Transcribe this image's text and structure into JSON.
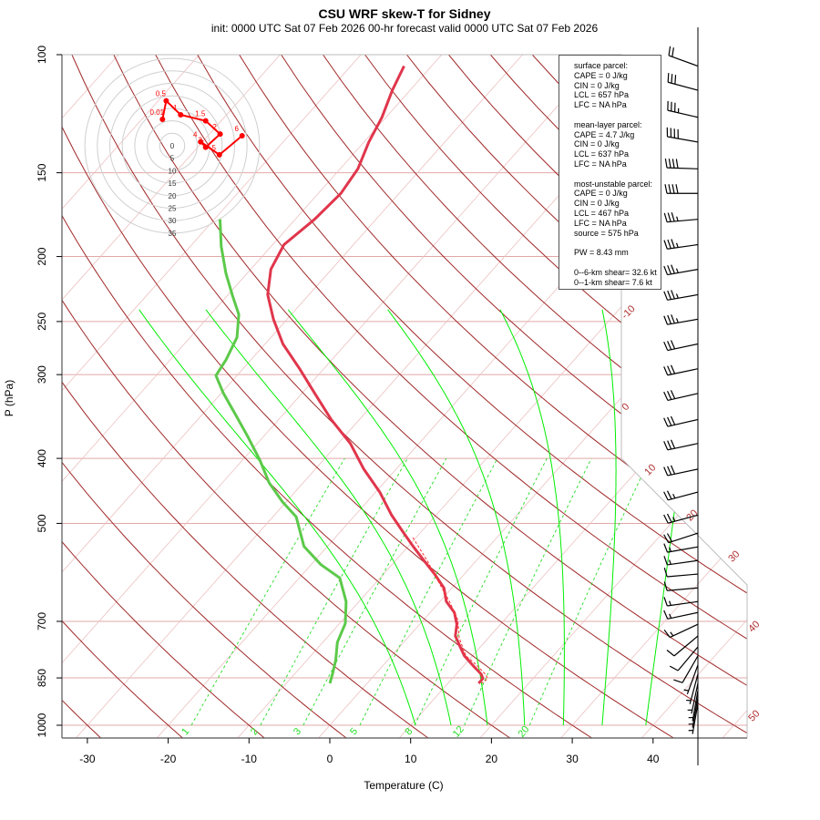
{
  "title": "CSU WRF skew-T for Sidney",
  "subtitle": "init: 0000 UTC Sat 07 Feb 2026    00-hr forecast valid 0000 UTC Sat 07 Feb 2026",
  "legend": {
    "sections": [
      {
        "lines": [
          "surface parcel:",
          "CAPE = 0 J/kg",
          "CIN = 0 J/kg",
          "LCL = 657 hPa",
          "LFC = NA hPa"
        ]
      },
      {
        "lines": [
          "mean-layer parcel:",
          "CAPE = 4.7 J/kg",
          "CIN = 0 J/kg",
          "LCL = 637 hPa",
          "LFC = NA hPa"
        ]
      },
      {
        "lines": [
          "most-unstable parcel:",
          "CAPE = 0 J/kg",
          "CIN = 0 J/kg",
          "LCL = 467 hPa",
          "LFC = NA hPa",
          "source = 575 hPa"
        ]
      },
      {
        "lines": [
          "PW =  8.43 mm"
        ]
      },
      {
        "lines": [
          "0--6-km shear= 32.6 kt",
          "0--1-km shear= 7.6 kt"
        ]
      }
    ]
  },
  "colors": {
    "temperature": "#e0364c",
    "dewpoint": "#5cc94a",
    "parcel": "#ff3030",
    "dry_adiabat": "#a02828",
    "isotherm": "#ecc0c0",
    "isobar": "#e2a8a8",
    "moist_adiabat": "#00ee00",
    "mixing_ratio": "#22dd22",
    "hodograph": "#ff0000",
    "barb": "#000000"
  },
  "chart_data": {
    "type": "skew-t",
    "title": "CSU WRF skew-T for Sidney",
    "xlabel": "Temperature (C)",
    "ylabel": "P (hPa)",
    "x_ticks": [
      "-30",
      "-20",
      "-10",
      "0",
      "10",
      "20",
      "30",
      "40"
    ],
    "y_ticks": [
      "100",
      "150",
      "200",
      "250",
      "300",
      "400",
      "500",
      "700",
      "850",
      "1000"
    ],
    "xlim": [
      -33,
      52
    ],
    "ylim_hPa": [
      1050,
      100
    ],
    "dry_adiabat_labels": [
      "-10",
      "0",
      "10",
      "20",
      "30",
      "40",
      "50"
    ],
    "mixing_ratio_labels": [
      "1",
      "2",
      "3",
      "5",
      "8",
      "12",
      "20"
    ],
    "moist_adiabat_base_temps_C": [
      10.6,
      15.0,
      19.5,
      24.1,
      28.9,
      33.7,
      39.1
    ],
    "temperature": {
      "p": [
        104,
        113,
        124,
        135,
        148,
        161,
        176,
        192,
        209,
        228,
        248,
        270,
        294,
        320,
        350,
        380,
        415,
        449,
        486,
        517,
        542,
        568,
        595,
        624,
        654,
        679,
        707,
        736,
        764,
        788,
        813,
        839,
        852,
        866
      ],
      "T": [
        -63.4,
        -62.2,
        -60.5,
        -59.4,
        -57.8,
        -57.2,
        -57.6,
        -58.6,
        -57.5,
        -55.1,
        -51.7,
        -47.8,
        -43.0,
        -38.4,
        -33.5,
        -28.5,
        -24.0,
        -19.5,
        -15.5,
        -12.0,
        -9.3,
        -6.5,
        -3.7,
        -1.0,
        0.8,
        3.0,
        4.6,
        5.7,
        7.5,
        9.0,
        11.0,
        13.1,
        13.8,
        13.8
      ]
    },
    "dewpoint": {
      "p": [
        176,
        193,
        212,
        229,
        244,
        264,
        285,
        301,
        320,
        344,
        370,
        402,
        435,
        464,
        489,
        541,
        576,
        603,
        654,
        705,
        752,
        801,
        839,
        866
      ],
      "Td": [
        -69.3,
        -66.2,
        -62.6,
        -59.3,
        -56.5,
        -54.2,
        -53.1,
        -52.6,
        -49.7,
        -45.9,
        -42.1,
        -37.9,
        -34.2,
        -30.5,
        -27.1,
        -22.9,
        -18.8,
        -15.0,
        -11.6,
        -9.3,
        -8.2,
        -6.4,
        -5.3,
        -4.6
      ]
    },
    "parcel": {
      "p": [
        525,
        568,
        614,
        654,
        696,
        741,
        788,
        813,
        839,
        852,
        866
      ],
      "T": [
        -10.4,
        -6.1,
        -2.1,
        1.2,
        4.2,
        6.4,
        9.2,
        11.5,
        13.6,
        14.4,
        14.2
      ]
    },
    "hodograph": {
      "ring_labels": [
        "0",
        "5",
        "10",
        "15",
        "20",
        "25",
        "30",
        "35"
      ],
      "points": [
        {
          "label": "0.01",
          "u": -3.9,
          "v": 10.6
        },
        {
          "label": "0.5",
          "u": -2.4,
          "v": 18.0
        },
        {
          "label": "1",
          "u": 3.4,
          "v": 12.4
        },
        {
          "label": "1.5",
          "u": 13.4,
          "v": 10.0
        },
        {
          "label": "2",
          "u": 19.2,
          "v": 4.7
        },
        {
          "label": "3",
          "u": 13.4,
          "v": -0.6
        },
        {
          "label": "4",
          "u": 11.4,
          "v": 1.6
        },
        {
          "label": "5",
          "u": 18.9,
          "v": -3.6
        },
        {
          "label": "6",
          "u": 28.0,
          "v": 4.0
        }
      ]
    },
    "winds": [
      {
        "p": 104,
        "dir": 290,
        "kt": 20
      },
      {
        "p": 113,
        "dir": 285,
        "kt": 30
      },
      {
        "p": 124,
        "dir": 283,
        "kt": 35
      },
      {
        "p": 135,
        "dir": 280,
        "kt": 40
      },
      {
        "p": 148,
        "dir": 272,
        "kt": 40
      },
      {
        "p": 161,
        "dir": 270,
        "kt": 40
      },
      {
        "p": 176,
        "dir": 265,
        "kt": 35
      },
      {
        "p": 192,
        "dir": 262,
        "kt": 35
      },
      {
        "p": 209,
        "dir": 260,
        "kt": 35
      },
      {
        "p": 228,
        "dir": 260,
        "kt": 35
      },
      {
        "p": 248,
        "dir": 260,
        "kt": 35
      },
      {
        "p": 270,
        "dir": 258,
        "kt": 30
      },
      {
        "p": 294,
        "dir": 258,
        "kt": 30
      },
      {
        "p": 320,
        "dir": 257,
        "kt": 30
      },
      {
        "p": 350,
        "dir": 257,
        "kt": 30
      },
      {
        "p": 380,
        "dir": 258,
        "kt": 30
      },
      {
        "p": 415,
        "dir": 258,
        "kt": 30
      },
      {
        "p": 449,
        "dir": 255,
        "kt": 25
      },
      {
        "p": 486,
        "dir": 255,
        "kt": 25
      },
      {
        "p": 517,
        "dir": 252,
        "kt": 20
      },
      {
        "p": 542,
        "dir": 260,
        "kt": 15
      },
      {
        "p": 568,
        "dir": 262,
        "kt": 15
      },
      {
        "p": 595,
        "dir": 265,
        "kt": 10
      },
      {
        "p": 624,
        "dir": 265,
        "kt": 10
      },
      {
        "p": 654,
        "dir": 262,
        "kt": 15
      },
      {
        "p": 679,
        "dir": 258,
        "kt": 15
      },
      {
        "p": 707,
        "dir": 245,
        "kt": 15
      },
      {
        "p": 736,
        "dir": 230,
        "kt": 10
      },
      {
        "p": 764,
        "dir": 220,
        "kt": 10
      },
      {
        "p": 788,
        "dir": 210,
        "kt": 10
      },
      {
        "p": 813,
        "dir": 200,
        "kt": 5
      },
      {
        "p": 839,
        "dir": 195,
        "kt": 5
      },
      {
        "p": 866,
        "dir": 192,
        "kt": 5
      },
      {
        "p": 888,
        "dir": 190,
        "kt": 5
      },
      {
        "p": 908,
        "dir": 190,
        "kt": 5
      },
      {
        "p": 928,
        "dir": 190,
        "kt": 5
      }
    ]
  }
}
